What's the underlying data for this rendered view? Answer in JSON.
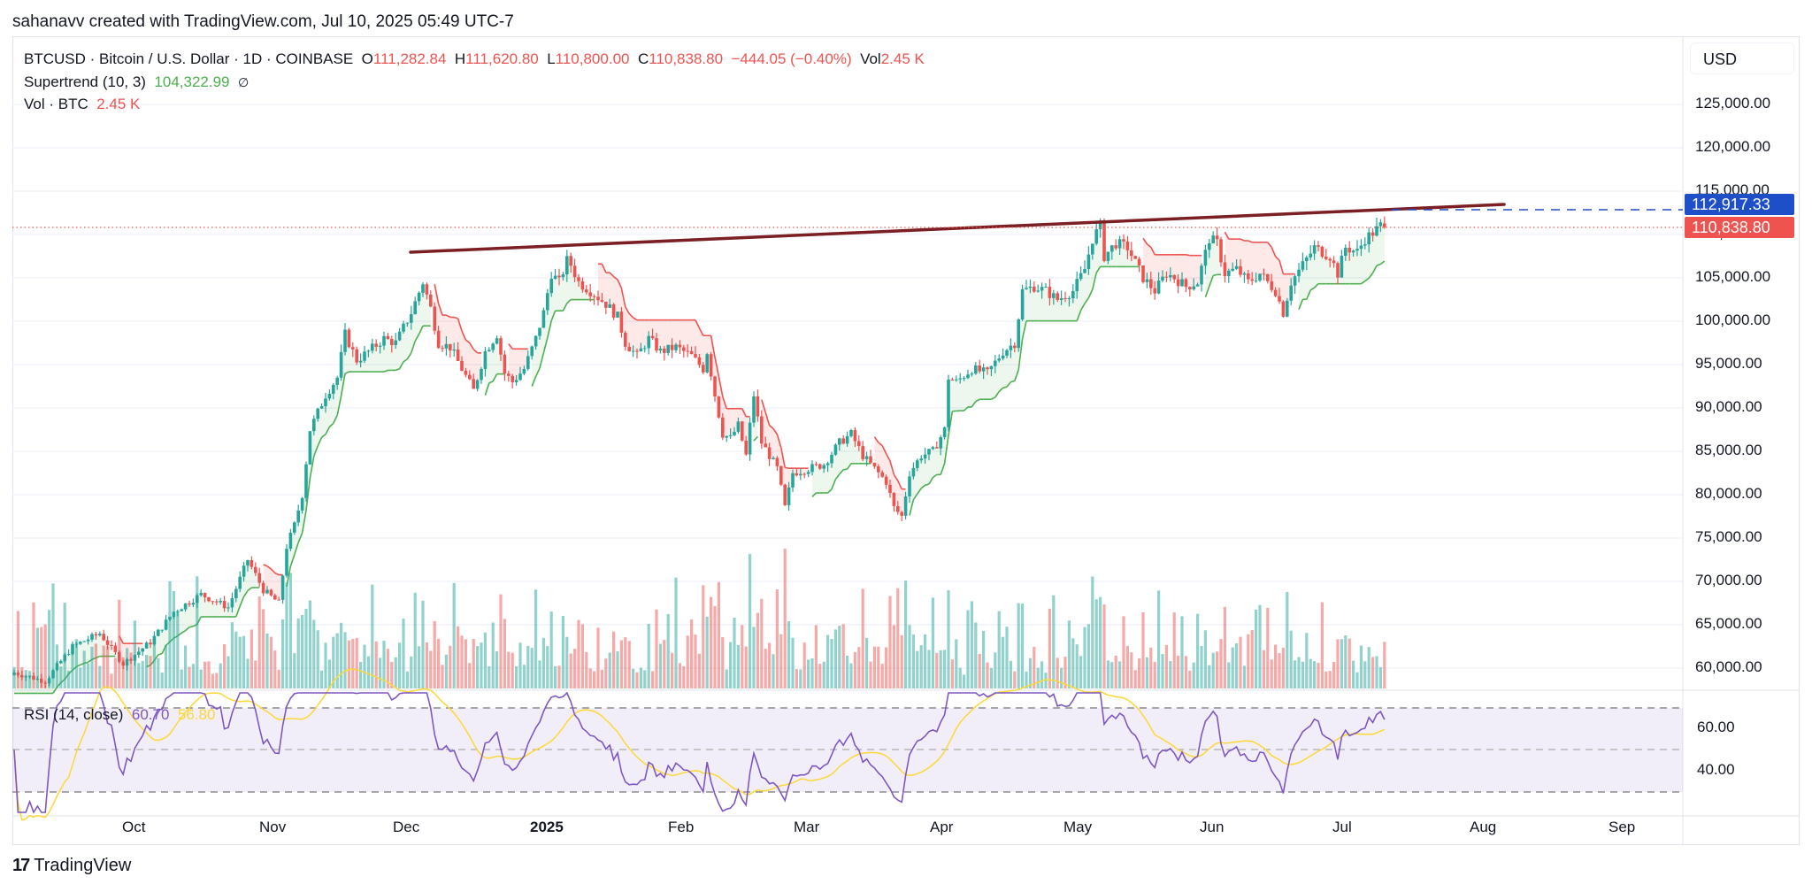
{
  "header": {
    "credit": "sahanavv created with TradingView.com, Jul 10, 2025 05:49 UTC-7"
  },
  "legend": {
    "symbol_line": "BTCUSD · Bitcoin / U.S. Dollar · 1D · COINBASE",
    "open_label": "O",
    "open": "111,282.84",
    "high_label": "H",
    "high": "111,620.80",
    "low_label": "L",
    "low": "110,800.00",
    "close_label": "C",
    "close": "110,838.80",
    "change": "−444.05 (−0.40%)",
    "vol_label": "Vol",
    "vol": "2.45 K",
    "supertrend_label": "Supertrend (10, 3)",
    "supertrend_value": "104,322.99",
    "supertrend_icon": "∅",
    "volume_label": "Vol · BTC",
    "volume_value": "2.45 K"
  },
  "price_axis": {
    "currency": "USD",
    "ticks": [
      "125,000.00",
      "120,000.00",
      "115,000.00",
      "110,000.00",
      "105,000.00",
      "100,000.00",
      "95,000.00",
      "90,000.00",
      "85,000.00",
      "80,000.00",
      "75,000.00",
      "70,000.00",
      "65,000.00",
      "60,000.00"
    ],
    "trendline_badge": "112,917.33",
    "last_price_badge": "110,838.80"
  },
  "rsi": {
    "label": "RSI (14, close)",
    "value": "60.70",
    "ma_value": "56.80",
    "ticks": [
      "60.00",
      "40.00"
    ]
  },
  "time_axis": {
    "labels": [
      "Oct",
      "Nov",
      "Dec",
      "2025",
      "Feb",
      "Mar",
      "Apr",
      "May",
      "Jun",
      "Jul",
      "Aug",
      "Sep"
    ]
  },
  "footer": {
    "brand": "TradingView",
    "logo_glyph": "17"
  },
  "colors": {
    "up": "#26a69a",
    "down": "#ef5350",
    "supertrend_up": "#4caf50",
    "supertrend_down": "#ef5350",
    "trendline": "#7b1f24",
    "trendline_badge": "#1e4fc9",
    "rsi": "#7e57c2",
    "rsi_ma": "#fdd835"
  },
  "chart_data": {
    "type": "candlestick",
    "title": "BTCUSD · Bitcoin / U.S. Dollar · 1D · COINBASE",
    "xlabel": "",
    "ylabel": "USD",
    "ylim": [
      57000,
      130000
    ],
    "x_ticks": [
      "Oct",
      "Nov",
      "Dec",
      "2025",
      "Feb",
      "Mar",
      "Apr",
      "May",
      "Jun",
      "Jul",
      "Aug",
      "Sep"
    ],
    "y_ticks": [
      60000,
      65000,
      70000,
      75000,
      80000,
      85000,
      90000,
      95000,
      100000,
      105000,
      110000,
      115000,
      120000,
      125000
    ],
    "grid": true,
    "approx_monthly_closes": [
      {
        "month": "Sep 2024",
        "close": 63500
      },
      {
        "month": "Oct 2024",
        "close": 70200
      },
      {
        "month": "Nov 2024",
        "close": 96400
      },
      {
        "month": "Dec 2024",
        "close": 93400
      },
      {
        "month": "Jan 2025",
        "close": 102400
      },
      {
        "month": "Feb 2025",
        "close": 84300
      },
      {
        "month": "Mar 2025",
        "close": 82500
      },
      {
        "month": "Apr 2025",
        "close": 94200
      },
      {
        "month": "May 2025",
        "close": 104600
      },
      {
        "month": "Jun 2025",
        "close": 107100
      },
      {
        "month": "Jul 10 2025",
        "close": 110838.8
      }
    ],
    "last_bar": {
      "open": 111282.84,
      "high": 111620.8,
      "low": 110800.0,
      "close": 110838.8,
      "change": -444.05,
      "change_pct": -0.4,
      "volume_k": 2.45
    },
    "trendline": {
      "start": {
        "date": "Dec 2024",
        "price": 108200
      },
      "end": {
        "date": "Aug 2025",
        "price": 113800
      },
      "label_value": 112917.33
    },
    "supertrend": {
      "params": "10, 3",
      "value": 104322.99
    },
    "rsi": {
      "length": 14,
      "source": "close",
      "value": 60.7,
      "ma": 56.8,
      "bands": [
        70,
        50,
        30
      ],
      "ticks": [
        60,
        40
      ]
    },
    "series": [
      {
        "name": "price_path",
        "points": [
          [
            0,
            59500
          ],
          [
            8,
            58500
          ],
          [
            15,
            62500
          ],
          [
            22,
            64000
          ],
          [
            28,
            60500
          ],
          [
            35,
            63000
          ],
          [
            41,
            66500
          ],
          [
            48,
            68500
          ],
          [
            55,
            67000
          ],
          [
            60,
            72500
          ],
          [
            64,
            69000
          ],
          [
            68,
            67500
          ],
          [
            70,
            74000
          ],
          [
            72,
            76500
          ],
          [
            74,
            80000
          ],
          [
            76,
            87500
          ],
          [
            78,
            89500
          ],
          [
            80,
            91500
          ],
          [
            83,
            93500
          ],
          [
            85,
            98500
          ],
          [
            88,
            95500
          ],
          [
            91,
            96500
          ],
          [
            95,
            98000
          ],
          [
            98,
            97500
          ],
          [
            102,
            101000
          ],
          [
            105,
            104500
          ],
          [
            107,
            101500
          ],
          [
            109,
            97500
          ],
          [
            112,
            97000
          ],
          [
            115,
            94500
          ],
          [
            118,
            92000
          ],
          [
            121,
            96500
          ],
          [
            124,
            98500
          ],
          [
            126,
            94000
          ],
          [
            128,
            93000
          ],
          [
            131,
            94500
          ],
          [
            134,
            98000
          ],
          [
            136,
            101000
          ],
          [
            138,
            105500
          ],
          [
            140,
            104500
          ],
          [
            142,
            107000
          ],
          [
            143,
            106500
          ],
          [
            145,
            104500
          ],
          [
            148,
            103500
          ],
          [
            152,
            102000
          ],
          [
            155,
            100500
          ],
          [
            157,
            97500
          ],
          [
            160,
            96000
          ],
          [
            163,
            98000
          ],
          [
            166,
            96500
          ],
          [
            170,
            97000
          ],
          [
            174,
            96000
          ],
          [
            177,
            94500
          ],
          [
            178,
            96500
          ],
          [
            180,
            91500
          ],
          [
            182,
            87000
          ],
          [
            184,
            86500
          ],
          [
            186,
            88000
          ],
          [
            188,
            84500
          ],
          [
            190,
            91500
          ],
          [
            192,
            86000
          ],
          [
            194,
            84500
          ],
          [
            196,
            83000
          ],
          [
            198,
            78500
          ],
          [
            200,
            82500
          ],
          [
            204,
            83000
          ],
          [
            208,
            83500
          ],
          [
            212,
            86000
          ],
          [
            215,
            87000
          ],
          [
            218,
            84500
          ],
          [
            221,
            83000
          ],
          [
            224,
            81500
          ],
          [
            226,
            78500
          ],
          [
            228,
            77500
          ],
          [
            230,
            82500
          ],
          [
            233,
            84500
          ],
          [
            236,
            85000
          ],
          [
            239,
            87500
          ],
          [
            240,
            93500
          ],
          [
            242,
            93000
          ],
          [
            246,
            94500
          ],
          [
            250,
            94000
          ],
          [
            254,
            96500
          ],
          [
            257,
            97500
          ],
          [
            259,
            103500
          ],
          [
            262,
            104000
          ],
          [
            265,
            103500
          ],
          [
            268,
            102500
          ],
          [
            272,
            103500
          ],
          [
            275,
            106000
          ],
          [
            277,
            109500
          ],
          [
            279,
            111000
          ],
          [
            280,
            107500
          ],
          [
            283,
            109000
          ],
          [
            286,
            108500
          ],
          [
            290,
            105000
          ],
          [
            293,
            103500
          ],
          [
            296,
            105500
          ],
          [
            298,
            105000
          ],
          [
            301,
            104000
          ],
          [
            304,
            104500
          ],
          [
            307,
            109500
          ],
          [
            309,
            109000
          ],
          [
            311,
            105500
          ],
          [
            314,
            106000
          ],
          [
            317,
            104500
          ],
          [
            320,
            105500
          ],
          [
            324,
            103500
          ],
          [
            326,
            101000
          ],
          [
            328,
            104500
          ],
          [
            331,
            106500
          ],
          [
            334,
            108500
          ],
          [
            338,
            107500
          ],
          [
            340,
            105500
          ],
          [
            342,
            108500
          ],
          [
            345,
            108000
          ],
          [
            347,
            109500
          ],
          [
            349,
            110200
          ],
          [
            351,
            111000
          ],
          [
            352,
            110800
          ]
        ]
      }
    ]
  }
}
